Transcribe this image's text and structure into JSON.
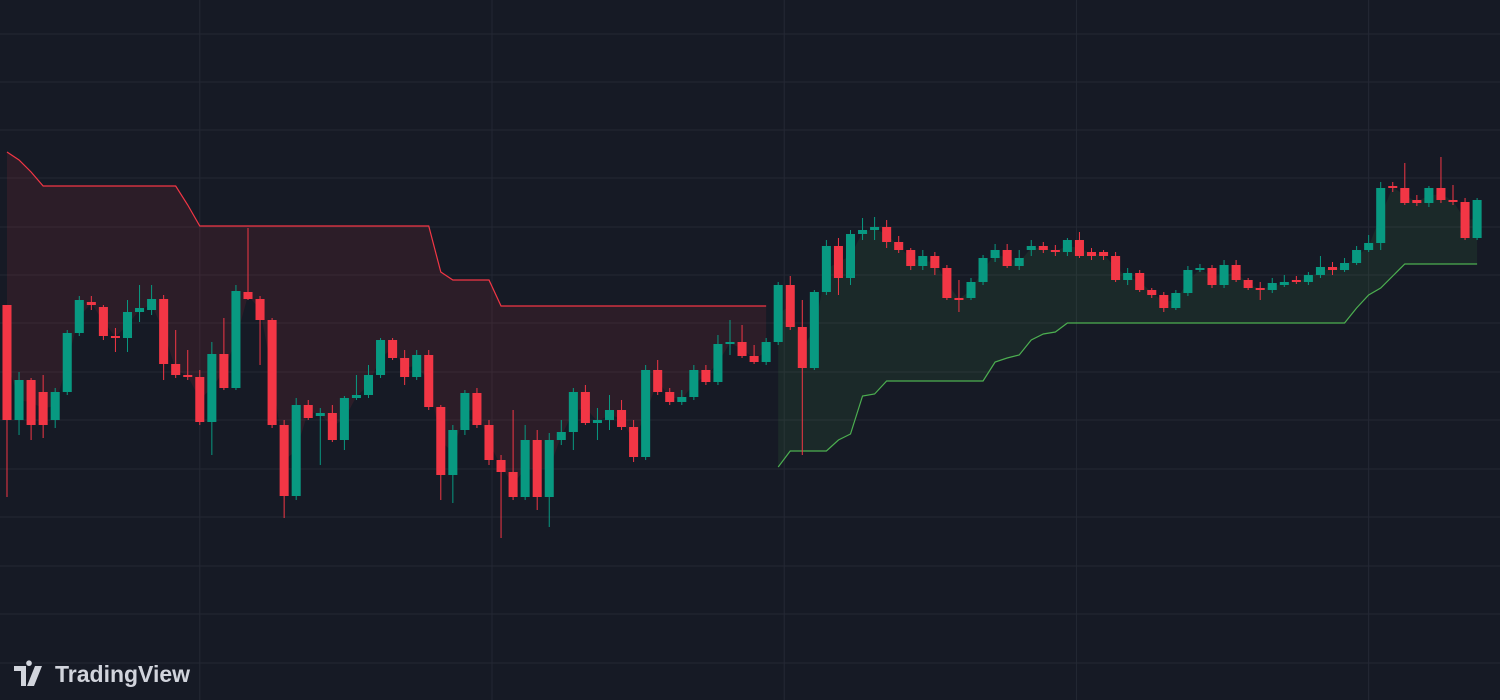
{
  "chart_data": {
    "type": "candlestick",
    "logo": "TradingView",
    "background": "#161a25",
    "grid": true,
    "grid_color": "#242834",
    "up_color": "#089981",
    "down_color": "#f23645",
    "xlim": [
      -0.58,
      123.9
    ],
    "xticks": [
      16,
      40.25,
      64.5,
      88.75,
      113
    ],
    "ylim": [
      0,
      700
    ],
    "yticks": [
      666,
      618,
      570,
      522,
      473,
      425,
      377,
      328,
      280,
      231,
      183,
      134,
      86,
      37
    ],
    "open": [
      395,
      280,
      320,
      308,
      280,
      308,
      367,
      398,
      393,
      364,
      362,
      388,
      390,
      401,
      336,
      325,
      323,
      278,
      346,
      312,
      408,
      401,
      380,
      275,
      204,
      295,
      284,
      287,
      260,
      302,
      305,
      325,
      360,
      342,
      323,
      345,
      293,
      225,
      270,
      307,
      275,
      240,
      228,
      203,
      260,
      203,
      260,
      268,
      308,
      277,
      280,
      290,
      273,
      243,
      330,
      308,
      298,
      303,
      330,
      318,
      356,
      358,
      344,
      338,
      358,
      415,
      373,
      332,
      408,
      454,
      422,
      466,
      470,
      473,
      458,
      450,
      434,
      444,
      432,
      402,
      402,
      418,
      442,
      450,
      434,
      450,
      454,
      450,
      448,
      460,
      448,
      448,
      444,
      420,
      427,
      410,
      405,
      392,
      407,
      430,
      432,
      415,
      435,
      420,
      412,
      410,
      415,
      420,
      418,
      425,
      433,
      430,
      437,
      450,
      457,
      514,
      512,
      500,
      497,
      512,
      500,
      498,
      462
    ],
    "high": [
      395,
      328,
      322,
      325,
      312,
      370,
      404,
      404,
      395,
      372,
      400,
      415,
      415,
      405,
      370,
      350,
      330,
      358,
      382,
      415,
      472,
      404,
      382,
      280,
      302,
      300,
      292,
      295,
      304,
      325,
      335,
      362,
      362,
      350,
      350,
      350,
      295,
      275,
      310,
      312,
      280,
      245,
      290,
      275,
      270,
      267,
      280,
      312,
      315,
      292,
      305,
      300,
      280,
      335,
      340,
      312,
      310,
      335,
      335,
      365,
      380,
      375,
      355,
      362,
      418,
      424,
      400,
      410,
      460,
      462,
      470,
      482,
      483,
      480,
      464,
      452,
      450,
      448,
      435,
      420,
      422,
      445,
      456,
      456,
      450,
      460,
      458,
      455,
      462,
      468,
      452,
      450,
      448,
      432,
      430,
      412,
      408,
      410,
      434,
      436,
      435,
      440,
      440,
      422,
      418,
      422,
      425,
      424,
      428,
      444,
      438,
      442,
      454,
      465,
      518,
      518,
      537,
      505,
      514,
      543,
      515,
      502,
      502
    ],
    "low": [
      203,
      265,
      260,
      262,
      272,
      305,
      364,
      390,
      360,
      348,
      348,
      378,
      385,
      320,
      322,
      320,
      275,
      245,
      310,
      310,
      400,
      335,
      272,
      182,
      200,
      280,
      235,
      258,
      250,
      300,
      302,
      322,
      340,
      315,
      320,
      290,
      200,
      197,
      265,
      272,
      235,
      162,
      200,
      200,
      190,
      173,
      255,
      250,
      275,
      260,
      270,
      270,
      238,
      240,
      305,
      295,
      295,
      300,
      315,
      315,
      345,
      342,
      336,
      335,
      355,
      370,
      245,
      330,
      405,
      405,
      415,
      460,
      460,
      452,
      447,
      430,
      430,
      425,
      400,
      388,
      400,
      415,
      438,
      432,
      430,
      444,
      447,
      444,
      444,
      442,
      440,
      440,
      418,
      415,
      408,
      402,
      388,
      390,
      404,
      428,
      412,
      412,
      418,
      410,
      400,
      407,
      413,
      416,
      415,
      422,
      425,
      428,
      435,
      448,
      450,
      508,
      495,
      494,
      493,
      497,
      495,
      460,
      460
    ],
    "close": [
      280,
      320,
      275,
      275,
      308,
      367,
      400,
      395,
      364,
      362,
      388,
      392,
      401,
      336,
      325,
      323,
      278,
      346,
      312,
      409,
      401,
      380,
      275,
      204,
      295,
      282,
      287,
      260,
      302,
      305,
      325,
      360,
      342,
      323,
      345,
      293,
      225,
      270,
      307,
      275,
      240,
      228,
      203,
      260,
      203,
      260,
      268,
      308,
      277,
      280,
      290,
      273,
      243,
      330,
      308,
      298,
      303,
      330,
      318,
      356,
      358,
      344,
      338,
      358,
      415,
      373,
      332,
      408,
      454,
      422,
      466,
      470,
      473,
      458,
      450,
      434,
      444,
      432,
      402,
      400,
      418,
      442,
      450,
      434,
      442,
      454,
      450,
      448,
      460,
      444,
      444,
      444,
      420,
      427,
      410,
      405,
      392,
      407,
      430,
      432,
      415,
      435,
      420,
      412,
      410,
      417,
      418,
      418,
      425,
      433,
      430,
      437,
      450,
      457,
      512,
      512,
      497,
      497,
      512,
      500,
      498,
      462,
      500
    ],
    "upper_band": {
      "color": "#f23645",
      "values": [
        548,
        540,
        528,
        514,
        514,
        514,
        514,
        514,
        514,
        514,
        514,
        514,
        514,
        514,
        514,
        495,
        474,
        474,
        474,
        474,
        474,
        474,
        474,
        474,
        474,
        474,
        474,
        474,
        474,
        474,
        474,
        474,
        474,
        474,
        474,
        474,
        428,
        420,
        420,
        420,
        420,
        394,
        394,
        394,
        394,
        394,
        394,
        394,
        394,
        394,
        394,
        394,
        394,
        394,
        394,
        394,
        394,
        394,
        394,
        394,
        394,
        394,
        394,
        394,
        null,
        null,
        null,
        null,
        null,
        null,
        null,
        null,
        null,
        null,
        null,
        null,
        null,
        null,
        null,
        null,
        null,
        null,
        null,
        null,
        null,
        null,
        null,
        null,
        null,
        null,
        null,
        null,
        null,
        null,
        null,
        null,
        null,
        null,
        null,
        null,
        null,
        null,
        null,
        null,
        null,
        null,
        null,
        null,
        null,
        null,
        null,
        null,
        null,
        null,
        null,
        null,
        null,
        null,
        null,
        null,
        null,
        null,
        null
      ]
    },
    "lower_band": {
      "color": "#4caf50",
      "values": [
        null,
        null,
        null,
        null,
        null,
        null,
        null,
        null,
        null,
        null,
        null,
        null,
        null,
        null,
        null,
        null,
        null,
        null,
        null,
        null,
        null,
        null,
        null,
        null,
        null,
        null,
        null,
        null,
        null,
        null,
        null,
        null,
        null,
        null,
        null,
        null,
        null,
        null,
        null,
        null,
        null,
        null,
        null,
        null,
        null,
        null,
        null,
        null,
        null,
        null,
        null,
        null,
        null,
        null,
        null,
        null,
        null,
        null,
        null,
        null,
        null,
        null,
        null,
        null,
        233,
        249,
        249,
        249,
        249,
        260,
        266,
        304,
        306,
        319,
        319,
        319,
        319,
        319,
        319,
        319,
        319,
        319,
        338,
        342,
        345,
        360,
        366,
        368,
        377,
        377,
        377,
        377,
        377,
        377,
        377,
        377,
        377,
        377,
        377,
        377,
        377,
        377,
        377,
        377,
        377,
        377,
        377,
        377,
        377,
        377,
        377,
        377,
        392,
        405,
        412,
        424,
        436,
        436,
        436,
        436,
        436,
        436,
        436
      ]
    }
  }
}
